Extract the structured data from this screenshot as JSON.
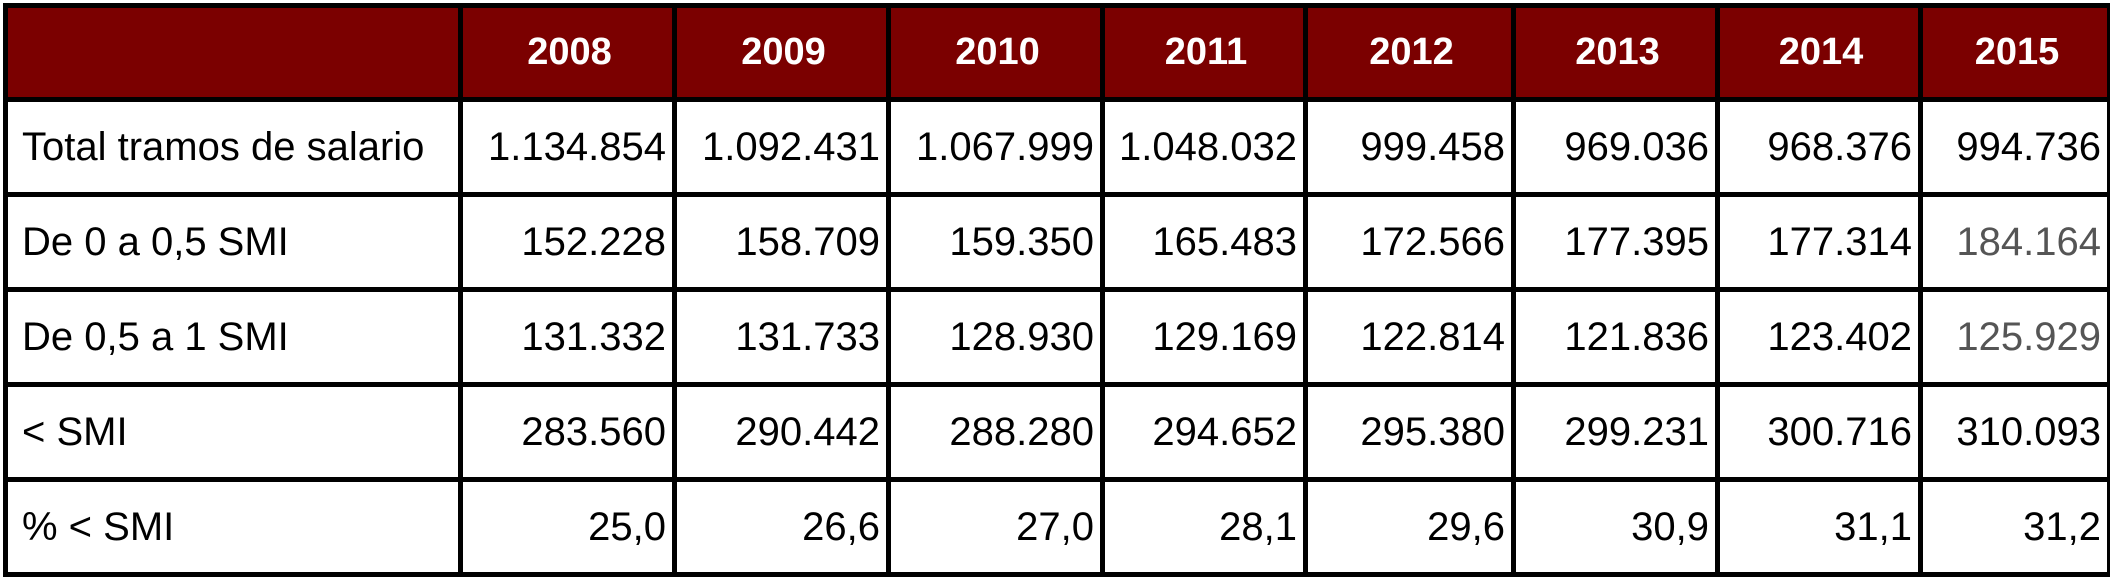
{
  "table": {
    "columns": [
      "",
      "2008",
      "2009",
      "2010",
      "2011",
      "2012",
      "2013",
      "2014",
      "2015"
    ],
    "rows": [
      {
        "label": "Total tramos de salario",
        "values": [
          "1.134.854",
          "1.092.431",
          "1.067.999",
          "1.048.032",
          "999.458",
          "969.036",
          "968.376",
          "994.736"
        ]
      },
      {
        "label": "De 0 a 0,5 SMI",
        "values": [
          "152.228",
          "158.709",
          "159.350",
          "165.483",
          "172.566",
          "177.395",
          "177.314",
          "184.164"
        ]
      },
      {
        "label": "De 0,5 a 1 SMI",
        "values": [
          "131.332",
          "131.733",
          "128.930",
          "129.169",
          "122.814",
          "121.836",
          "123.402",
          "125.929"
        ]
      },
      {
        "label": "< SMI",
        "values": [
          "283.560",
          "290.442",
          "288.280",
          "294.652",
          "295.380",
          "299.231",
          "300.716",
          "310.093"
        ]
      },
      {
        "label": "% < SMI",
        "values": [
          "25,0",
          "26,6",
          "27,0",
          "28,1",
          "29,6",
          "30,9",
          "31,1",
          "31,2"
        ]
      }
    ]
  },
  "colors": {
    "header_background": "#7b0000",
    "header_text": "#ffffff",
    "border": "#000000",
    "muted_value": "#555555"
  }
}
